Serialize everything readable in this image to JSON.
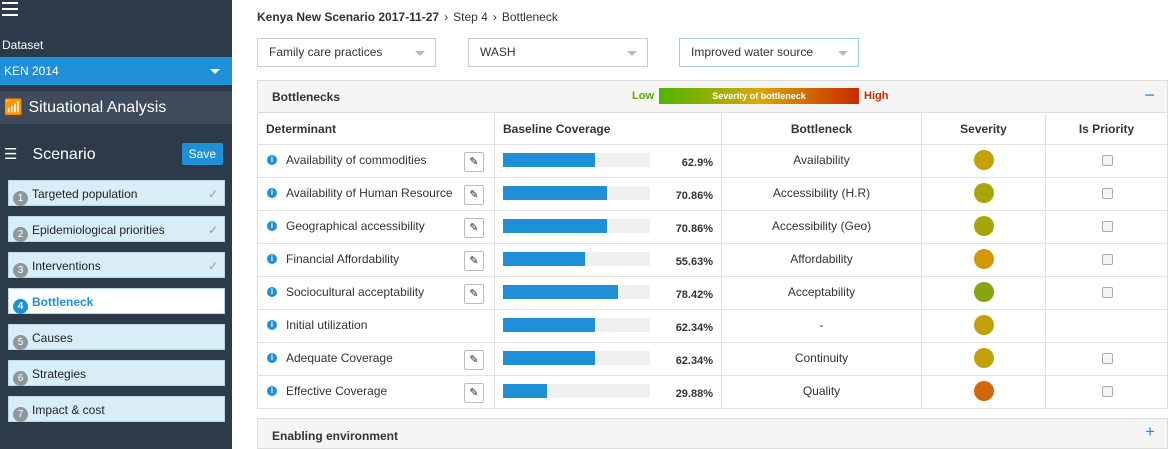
{
  "sidebar": {
    "dataset_label": "Dataset",
    "dataset_value": "KEN 2014",
    "situational": "Situational Analysis",
    "scenario": "Scenario",
    "save_label": "Save",
    "steps": [
      {
        "num": "1",
        "label": "Targeted population",
        "done": true,
        "active": false
      },
      {
        "num": "2",
        "label": "Epidemiological priorities",
        "done": true,
        "active": false
      },
      {
        "num": "3",
        "label": "Interventions",
        "done": true,
        "active": false
      },
      {
        "num": "4",
        "label": "Bottleneck",
        "done": false,
        "active": true
      },
      {
        "num": "5",
        "label": "Causes",
        "done": false,
        "active": false
      },
      {
        "num": "6",
        "label": "Strategies",
        "done": false,
        "active": false
      },
      {
        "num": "7",
        "label": "Impact & cost",
        "done": false,
        "active": false
      }
    ]
  },
  "breadcrumb": {
    "scenario": "Kenya New Scenario 2017-11-27",
    "step": "Step 4",
    "page": "Bottleneck",
    "separator": "›"
  },
  "filters": {
    "f1": "Family care practices",
    "f2": "WASH",
    "f3": "Improved water source"
  },
  "panel": {
    "title": "Bottlenecks",
    "legend_low": "Low",
    "legend_mid": "Severity of bottleneck",
    "legend_high": "High",
    "collapse_glyph": "−"
  },
  "table": {
    "headers": {
      "determinant": "Determinant",
      "coverage": "Baseline Coverage",
      "bottleneck": "Bottleneck",
      "severity": "Severity",
      "priority": "Is Priority"
    },
    "rows": [
      {
        "label": "Availability of commodities",
        "coverage": 62.9,
        "pct": "62.9%",
        "bottleneck": "Availability",
        "severity_color": "#c2a007",
        "editable": true,
        "checkbox": true
      },
      {
        "label": "Availability of Human Resource",
        "coverage": 70.86,
        "pct": "70.86%",
        "bottleneck": "Accessibility (H.R)",
        "severity_color": "#a8a50a",
        "editable": true,
        "checkbox": true
      },
      {
        "label": "Geographical accessibility",
        "coverage": 70.86,
        "pct": "70.86%",
        "bottleneck": "Accessibility (Geo)",
        "severity_color": "#a8a50a",
        "editable": true,
        "checkbox": true
      },
      {
        "label": "Financial Affordability",
        "coverage": 55.63,
        "pct": "55.63%",
        "bottleneck": "Affordability",
        "severity_color": "#d39808",
        "editable": true,
        "checkbox": true
      },
      {
        "label": "Sociocultural acceptability",
        "coverage": 78.42,
        "pct": "78.42%",
        "bottleneck": "Acceptability",
        "severity_color": "#86a410",
        "editable": true,
        "checkbox": true
      },
      {
        "label": "Initial utilization",
        "coverage": 62.34,
        "pct": "62.34%",
        "bottleneck": "-",
        "severity_color": "#c2a007",
        "editable": false,
        "checkbox": false
      },
      {
        "label": "Adequate Coverage",
        "coverage": 62.34,
        "pct": "62.34%",
        "bottleneck": "Continuity",
        "severity_color": "#c2a007",
        "editable": true,
        "checkbox": true
      },
      {
        "label": "Effective Coverage",
        "coverage": 29.88,
        "pct": "29.88%",
        "bottleneck": "Quality",
        "severity_color": "#d2660e",
        "editable": true,
        "checkbox": true
      }
    ]
  },
  "panel2": {
    "title": "Enabling environment",
    "expand_glyph": "+"
  },
  "icons": {
    "info": "i",
    "pencil": "✎",
    "check": "✓",
    "situational": "📶",
    "scenario": "☰"
  }
}
